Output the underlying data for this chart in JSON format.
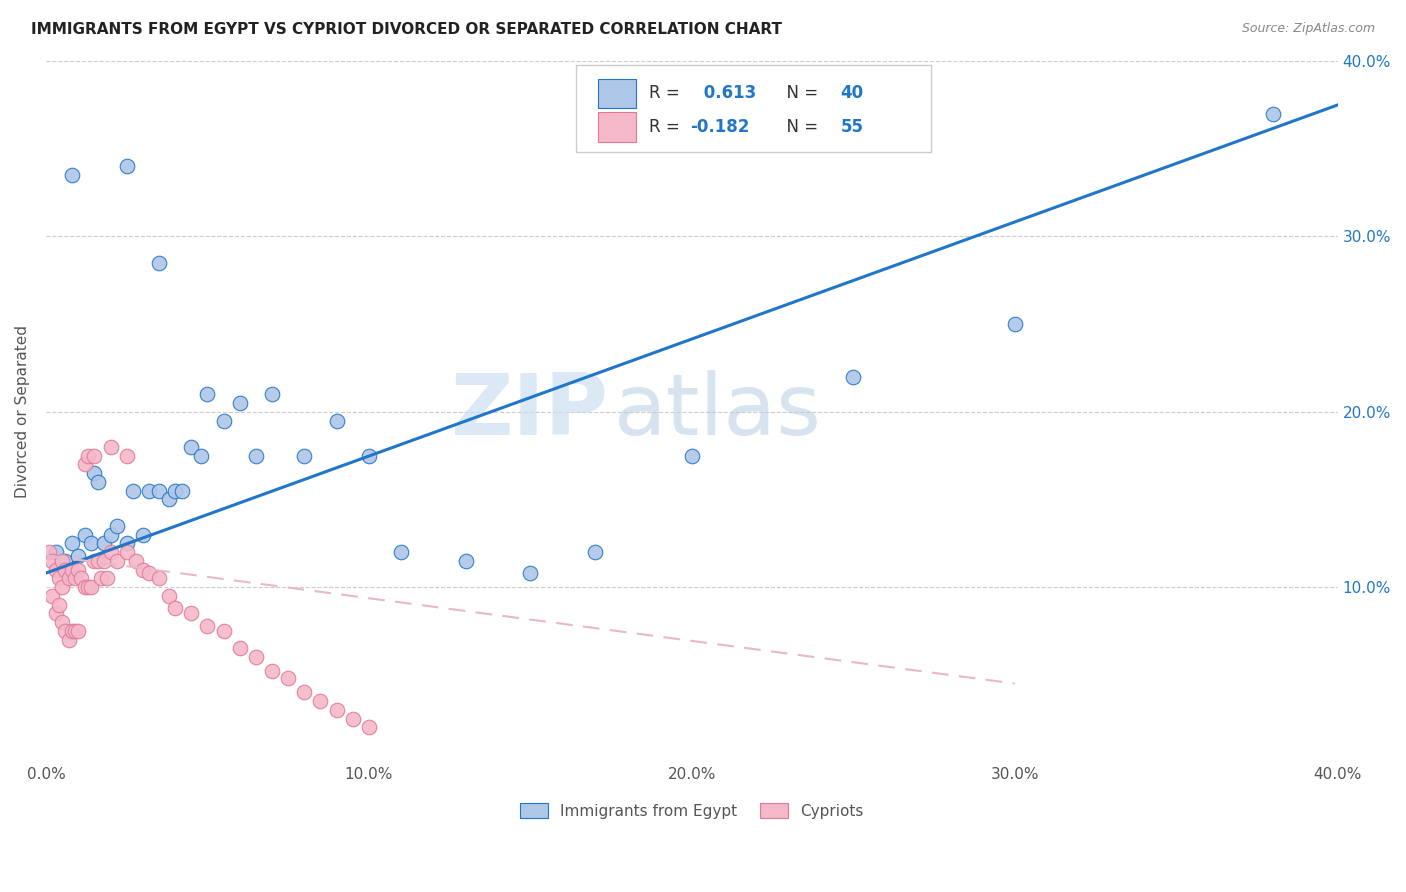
{
  "title": "IMMIGRANTS FROM EGYPT VS CYPRIOT DIVORCED OR SEPARATED CORRELATION CHART",
  "source": "Source: ZipAtlas.com",
  "ylabel": "Divorced or Separated",
  "legend_label1": "Immigrants from Egypt",
  "legend_label2": "Cypriots",
  "R1": 0.613,
  "N1": 40,
  "R2": -0.182,
  "N2": 55,
  "xmin": 0.0,
  "xmax": 0.4,
  "ymin": 0.0,
  "ymax": 0.4,
  "color_blue": "#aec6e8",
  "color_pink": "#f4b8c8",
  "color_blue_line": "#2176c7",
  "color_pink_line": "#e0789a",
  "color_pink_dashed": "#e8b8c8",
  "watermark_zip": "ZIP",
  "watermark_atlas": "atlas",
  "blue_x": [
    0.003,
    0.006,
    0.008,
    0.01,
    0.012,
    0.014,
    0.015,
    0.016,
    0.018,
    0.02,
    0.022,
    0.025,
    0.027,
    0.03,
    0.032,
    0.035,
    0.038,
    0.04,
    0.042,
    0.045,
    0.048,
    0.05,
    0.055,
    0.06,
    0.065,
    0.07,
    0.08,
    0.09,
    0.1,
    0.11,
    0.13,
    0.15,
    0.17,
    0.2,
    0.25,
    0.3,
    0.38,
    0.025,
    0.035,
    0.008
  ],
  "blue_y": [
    0.12,
    0.115,
    0.125,
    0.118,
    0.13,
    0.125,
    0.165,
    0.16,
    0.125,
    0.13,
    0.135,
    0.125,
    0.155,
    0.13,
    0.155,
    0.155,
    0.15,
    0.155,
    0.155,
    0.18,
    0.175,
    0.21,
    0.195,
    0.205,
    0.175,
    0.21,
    0.175,
    0.195,
    0.175,
    0.12,
    0.115,
    0.108,
    0.12,
    0.175,
    0.22,
    0.25,
    0.37,
    0.34,
    0.285,
    0.335
  ],
  "pink_x": [
    0.001,
    0.002,
    0.002,
    0.003,
    0.003,
    0.004,
    0.004,
    0.005,
    0.005,
    0.005,
    0.006,
    0.006,
    0.007,
    0.007,
    0.008,
    0.008,
    0.009,
    0.009,
    0.01,
    0.01,
    0.011,
    0.012,
    0.012,
    0.013,
    0.013,
    0.014,
    0.015,
    0.015,
    0.016,
    0.017,
    0.018,
    0.019,
    0.02,
    0.02,
    0.022,
    0.025,
    0.025,
    0.028,
    0.03,
    0.032,
    0.035,
    0.038,
    0.04,
    0.045,
    0.05,
    0.055,
    0.06,
    0.065,
    0.07,
    0.075,
    0.08,
    0.085,
    0.09,
    0.095,
    0.1
  ],
  "pink_y": [
    0.12,
    0.095,
    0.115,
    0.085,
    0.11,
    0.09,
    0.105,
    0.08,
    0.1,
    0.115,
    0.075,
    0.11,
    0.07,
    0.105,
    0.075,
    0.11,
    0.075,
    0.105,
    0.075,
    0.11,
    0.105,
    0.1,
    0.17,
    0.1,
    0.175,
    0.1,
    0.115,
    0.175,
    0.115,
    0.105,
    0.115,
    0.105,
    0.12,
    0.18,
    0.115,
    0.175,
    0.12,
    0.115,
    0.11,
    0.108,
    0.105,
    0.095,
    0.088,
    0.085,
    0.078,
    0.075,
    0.065,
    0.06,
    0.052,
    0.048,
    0.04,
    0.035,
    0.03,
    0.025,
    0.02
  ],
  "blue_line_x0": 0.0,
  "blue_line_y0": 0.108,
  "blue_line_x1": 0.4,
  "blue_line_y1": 0.375,
  "pink_line_x0": 0.0,
  "pink_line_y0": 0.118,
  "pink_line_x1": 0.3,
  "pink_line_y1": 0.045
}
